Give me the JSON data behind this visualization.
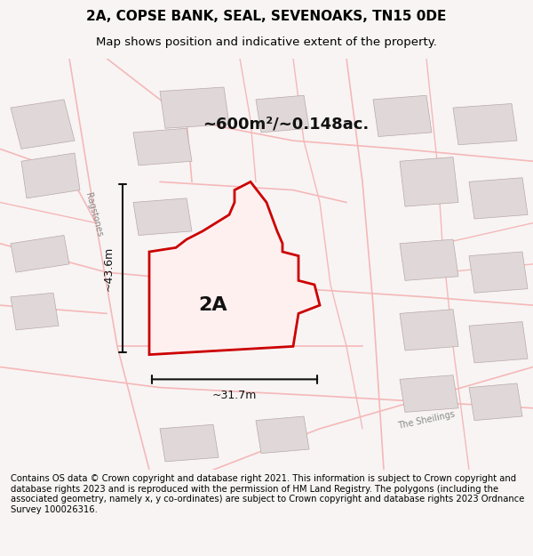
{
  "title_line1": "2A, COPSE BANK, SEAL, SEVENOAKS, TN15 0DE",
  "title_line2": "Map shows position and indicative extent of the property.",
  "area_label": "~600m²/~0.148ac.",
  "width_label": "~31.7m",
  "height_label": "~43.6m",
  "plot_label": "2A",
  "footer_text": "Contains OS data © Crown copyright and database right 2021. This information is subject to Crown copyright and database rights 2023 and is reproduced with the permission of HM Land Registry. The polygons (including the associated geometry, namely x, y co-ordinates) are subject to Crown copyright and database rights 2023 Ordnance Survey 100026316.",
  "bg_color": "#f5f0f0",
  "map_bg": "#ffffff",
  "road_color": "#f5b8b8",
  "building_color": "#e0d8d8",
  "plot_outline_color": "#cc0000",
  "dimension_color": "#111111",
  "street_label_ragstones": "Ragstones",
  "street_label_sheilings": "The Sheilings"
}
